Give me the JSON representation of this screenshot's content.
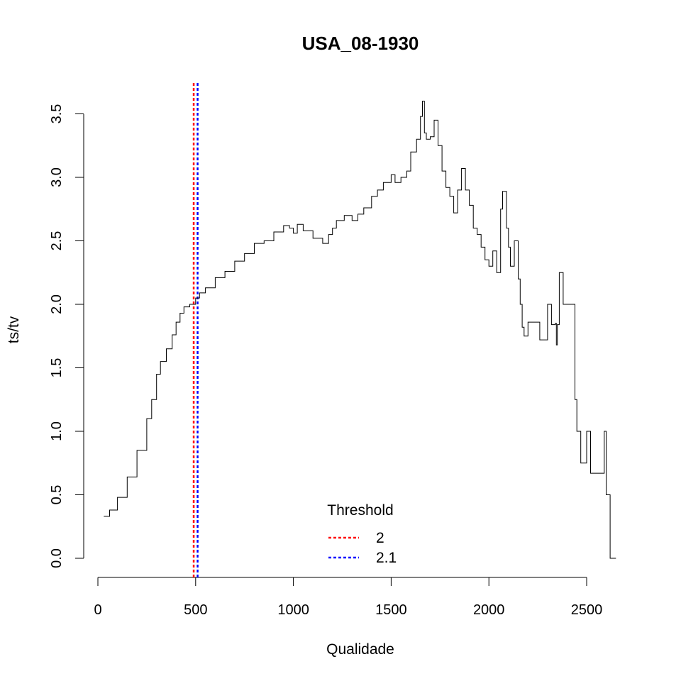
{
  "chart_data": {
    "type": "line",
    "title": "USA_08-1930",
    "xlabel": "Qualidade",
    "ylabel": "ts/tv",
    "xlim": [
      0,
      2650
    ],
    "ylim": [
      0,
      3.6
    ],
    "x_ticks": [
      0,
      500,
      1000,
      1500,
      2000,
      2500
    ],
    "y_ticks": [
      0.0,
      0.5,
      1.0,
      1.5,
      2.0,
      2.5,
      3.0,
      3.5
    ],
    "x_tick_labels": [
      "0",
      "500",
      "1000",
      "1500",
      "2000",
      "2500"
    ],
    "y_tick_labels": [
      "0.0",
      "0.5",
      "1.0",
      "1.5",
      "2.0",
      "2.5",
      "3.0",
      "3.5"
    ],
    "grid": false,
    "series": [
      {
        "color": "#000000",
        "step": true,
        "x": [
          30,
          60,
          100,
          150,
          200,
          250,
          275,
          300,
          320,
          350,
          380,
          400,
          420,
          440,
          470,
          500,
          520,
          550,
          600,
          650,
          700,
          750,
          800,
          850,
          900,
          950,
          980,
          1000,
          1020,
          1050,
          1100,
          1150,
          1180,
          1200,
          1220,
          1260,
          1300,
          1330,
          1360,
          1400,
          1430,
          1460,
          1500,
          1520,
          1550,
          1580,
          1600,
          1630,
          1650,
          1660,
          1670,
          1680,
          1700,
          1720,
          1740,
          1760,
          1780,
          1800,
          1820,
          1840,
          1860,
          1880,
          1900,
          1920,
          1940,
          1960,
          1980,
          2000,
          2020,
          2040,
          2060,
          2070,
          2090,
          2100,
          2110,
          2130,
          2150,
          2160,
          2170,
          2180,
          2200,
          2230,
          2260,
          2300,
          2320,
          2340,
          2345,
          2350,
          2360,
          2380,
          2420,
          2430,
          2440,
          2450,
          2470,
          2490,
          2500,
          2520,
          2560,
          2590,
          2600,
          2610,
          2620,
          2650
        ],
        "values": [
          0.33,
          0.38,
          0.48,
          0.64,
          0.85,
          1.1,
          1.25,
          1.45,
          1.55,
          1.65,
          1.76,
          1.86,
          1.93,
          1.98,
          2.0,
          2.05,
          2.09,
          2.13,
          2.21,
          2.26,
          2.34,
          2.4,
          2.48,
          2.5,
          2.57,
          2.62,
          2.6,
          2.56,
          2.63,
          2.58,
          2.52,
          2.48,
          2.55,
          2.6,
          2.66,
          2.7,
          2.66,
          2.71,
          2.76,
          2.85,
          2.9,
          2.96,
          3.02,
          2.96,
          3.0,
          3.05,
          3.2,
          3.3,
          3.48,
          3.6,
          3.35,
          3.3,
          3.32,
          3.45,
          3.25,
          3.05,
          2.92,
          2.85,
          2.72,
          2.9,
          3.07,
          2.9,
          2.78,
          2.6,
          2.55,
          2.45,
          2.35,
          2.3,
          2.42,
          2.25,
          2.75,
          2.89,
          2.6,
          2.45,
          2.3,
          2.5,
          2.2,
          2.0,
          1.82,
          1.75,
          1.86,
          1.86,
          1.72,
          2.0,
          1.84,
          1.85,
          1.68,
          1.84,
          2.25,
          2.0,
          2.0,
          2.0,
          1.25,
          1.0,
          0.75,
          0.75,
          1.0,
          0.67,
          0.67,
          1.0,
          0.5,
          0.5,
          0.0,
          0.0
        ]
      }
    ],
    "thresholds": [
      {
        "x": 490,
        "color": "#ff0000",
        "label": "2"
      },
      {
        "x": 510,
        "color": "#0000ff",
        "label": "2.1"
      }
    ],
    "legend": {
      "title": "Threshold",
      "position": "bottom-center"
    }
  }
}
